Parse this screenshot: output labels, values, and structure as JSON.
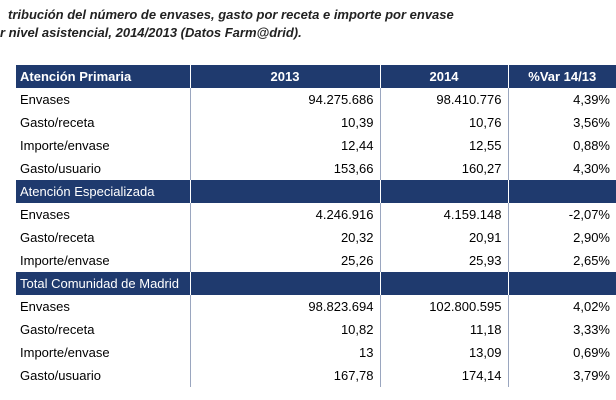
{
  "title": {
    "line1": "tribución del número de envases, gasto por receta e importe por envase",
    "line2": "r nivel asistencial, 2014/2013 (Datos Farm@drid)."
  },
  "columns": [
    "2013",
    "2014",
    "%Var 14/13"
  ],
  "sections": [
    {
      "name": "Atención Primaria",
      "rows": [
        {
          "label": "Envases",
          "v2013": "94.275.686",
          "v2014": "98.410.776",
          "var": "4,39%"
        },
        {
          "label": "Gasto/receta",
          "v2013": "10,39",
          "v2014": "10,76",
          "var": "3,56%"
        },
        {
          "label": "Importe/envase",
          "v2013": "12,44",
          "v2014": "12,55",
          "var": "0,88%"
        },
        {
          "label": "Gasto/usuario",
          "v2013": "153,66",
          "v2014": "160,27",
          "var": "4,30%"
        }
      ]
    },
    {
      "name": "Atención Especializada",
      "rows": [
        {
          "label": "Envases",
          "v2013": "4.246.916",
          "v2014": "4.159.148",
          "var": "-2,07%"
        },
        {
          "label": "Gasto/receta",
          "v2013": "20,32",
          "v2014": "20,91",
          "var": "2,90%"
        },
        {
          "label": "Importe/envase",
          "v2013": "25,26",
          "v2014": "25,93",
          "var": "2,65%"
        }
      ]
    },
    {
      "name": "Total Comunidad de Madrid",
      "rows": [
        {
          "label": "Envases",
          "v2013": "98.823.694",
          "v2014": "102.800.595",
          "var": "4,02%"
        },
        {
          "label": "Gasto/receta",
          "v2013": "10,82",
          "v2014": "11,18",
          "var": "3,33%"
        },
        {
          "label": "Importe/envase",
          "v2013": "13",
          "v2014": "13,09",
          "var": "0,69%"
        },
        {
          "label": "Gasto/usuario",
          "v2013": "167,78",
          "v2014": "174,14",
          "var": "3,79%"
        }
      ]
    }
  ],
  "colors": {
    "header_bg": "#1f3a6e",
    "header_text": "#ffffff"
  }
}
